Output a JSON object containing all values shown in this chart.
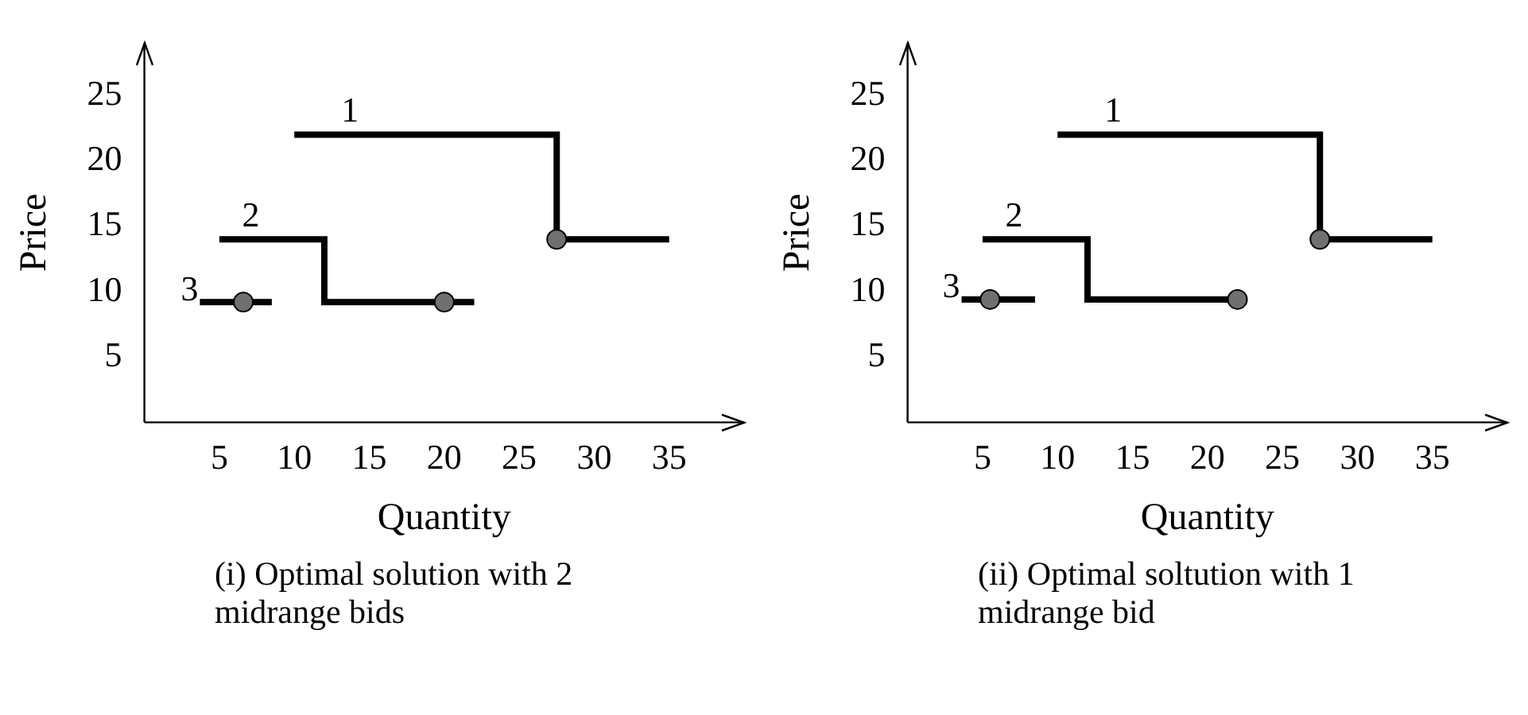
{
  "chart_data": [
    {
      "type": "line",
      "xlabel": "Quantity",
      "ylabel": "Price",
      "xlim": [
        0,
        40
      ],
      "ylim": [
        0,
        29
      ],
      "xticks": [
        5,
        10,
        15,
        20,
        25,
        30,
        35
      ],
      "yticks": [
        5,
        10,
        15,
        20,
        25
      ],
      "grid": false,
      "legend": false,
      "marker": "none",
      "line_style": "solid",
      "series": [
        {
          "name": "1",
          "color": "#000000",
          "x": [
            10,
            27.5,
            27.5,
            35
          ],
          "values": [
            22,
            22,
            14,
            14
          ]
        },
        {
          "name": "2",
          "color": "#000000",
          "x": [
            5,
            12,
            12,
            22
          ],
          "values": [
            14,
            14,
            9.2,
            9.2
          ]
        },
        {
          "name": "3",
          "color": "#000000",
          "x": [
            3.7,
            8.5
          ],
          "values": [
            9.2,
            9.2
          ]
        },
        {
          "type": "scatter",
          "marker": "circle",
          "color": "#707070",
          "x": [
            6.6,
            20,
            27.5
          ],
          "values": [
            9.2,
            9.2,
            14
          ]
        }
      ],
      "annotations": [
        "(i) Optimal solution with 2 midrange bids"
      ]
    },
    {
      "type": "line",
      "xlabel": "Quantity",
      "ylabel": "Price",
      "xlim": [
        0,
        40
      ],
      "ylim": [
        0,
        29
      ],
      "xticks": [
        5,
        10,
        15,
        20,
        25,
        30,
        35
      ],
      "yticks": [
        5,
        10,
        15,
        20,
        25
      ],
      "grid": false,
      "legend": false,
      "marker": "none",
      "line_style": "solid",
      "series": [
        {
          "name": "1",
          "color": "#000000",
          "x": [
            10,
            27.5,
            27.5,
            35
          ],
          "values": [
            22,
            22,
            14,
            14
          ]
        },
        {
          "name": "2",
          "color": "#000000",
          "x": [
            5,
            12,
            12,
            22
          ],
          "values": [
            14,
            14,
            9.4,
            9.4
          ]
        },
        {
          "name": "3",
          "color": "#000000",
          "x": [
            3.6,
            8.5
          ],
          "values": [
            9.4,
            9.4
          ]
        },
        {
          "type": "scatter",
          "marker": "circle",
          "color": "#707070",
          "x": [
            5.5,
            22,
            27.5
          ],
          "values": [
            9.4,
            9.4,
            14
          ]
        }
      ],
      "annotations": [
        "(ii) Optimal soltution with 1 midrange bid"
      ]
    }
  ]
}
